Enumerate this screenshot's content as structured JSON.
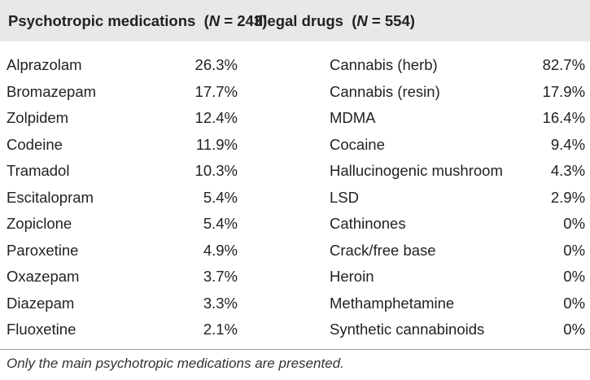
{
  "table": {
    "left_header": {
      "label": "Psychotropic medications",
      "n_open": "(",
      "n_symbol": "N",
      "n_rest": " = 243)"
    },
    "right_header": {
      "label": "Illegal drugs",
      "n_open": "(",
      "n_symbol": "N",
      "n_rest": " = 554)"
    },
    "rows": [
      {
        "med": "Alprazolam",
        "med_pct": "26.3%",
        "drug": "Cannabis (herb)",
        "drug_pct": "82.7%"
      },
      {
        "med": "Bromazepam",
        "med_pct": "17.7%",
        "drug": "Cannabis (resin)",
        "drug_pct": "17.9%"
      },
      {
        "med": "Zolpidem",
        "med_pct": "12.4%",
        "drug": "MDMA",
        "drug_pct": "16.4%"
      },
      {
        "med": "Codeine",
        "med_pct": "11.9%",
        "drug": "Cocaine",
        "drug_pct": "9.4%"
      },
      {
        "med": "Tramadol",
        "med_pct": "10.3%",
        "drug": "Hallucinogenic mushroom",
        "drug_pct": "4.3%"
      },
      {
        "med": "Escitalopram",
        "med_pct": "5.4%",
        "drug": "LSD",
        "drug_pct": "2.9%"
      },
      {
        "med": "Zopiclone",
        "med_pct": "5.4%",
        "drug": "Cathinones",
        "drug_pct": "0%"
      },
      {
        "med": "Paroxetine",
        "med_pct": "4.9%",
        "drug": "Crack/free base",
        "drug_pct": "0%"
      },
      {
        "med": "Oxazepam",
        "med_pct": "3.7%",
        "drug": "Heroin",
        "drug_pct": "0%"
      },
      {
        "med": "Diazepam",
        "med_pct": "3.3%",
        "drug": "Methamphetamine",
        "drug_pct": "0%"
      },
      {
        "med": "Fluoxetine",
        "med_pct": "2.1%",
        "drug": "Synthetic cannabinoids",
        "drug_pct": "0%"
      }
    ],
    "footnote": "Only the main psychotropic medications are presented.",
    "colors": {
      "header_background": "#e8e8e8",
      "text": "#222222",
      "rule": "#999999"
    }
  }
}
